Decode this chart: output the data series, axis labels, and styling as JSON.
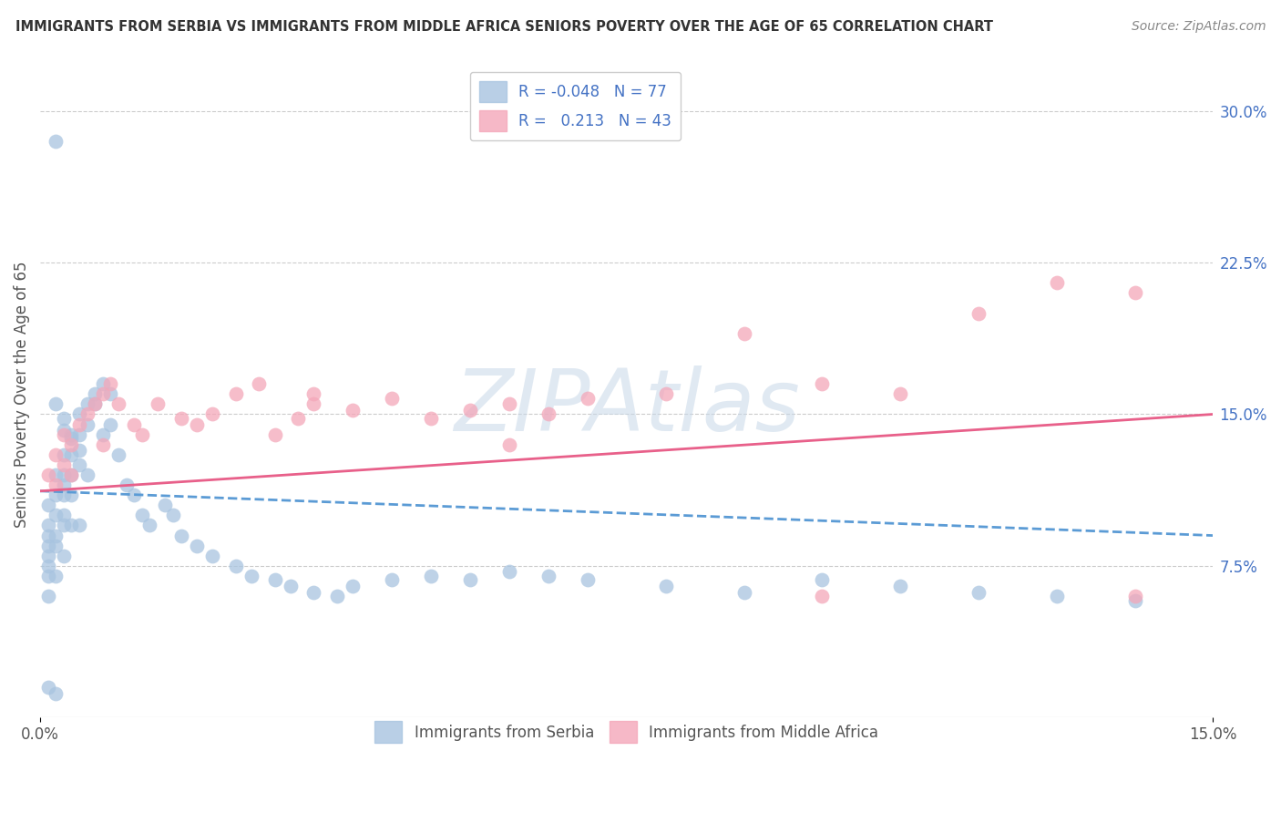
{
  "title": "IMMIGRANTS FROM SERBIA VS IMMIGRANTS FROM MIDDLE AFRICA SENIORS POVERTY OVER THE AGE OF 65 CORRELATION CHART",
  "source": "Source: ZipAtlas.com",
  "ylabel": "Seniors Poverty Over the Age of 65",
  "xlim": [
    0,
    0.15
  ],
  "ylim": [
    0,
    0.32
  ],
  "yticks": [
    0.075,
    0.15,
    0.225,
    0.3
  ],
  "ytick_labels": [
    "7.5%",
    "15.0%",
    "22.5%",
    "30.0%"
  ],
  "xticks": [
    0.0,
    0.15
  ],
  "xtick_labels": [
    "0.0%",
    "15.0%"
  ],
  "serbia_label": "Immigrants from Serbia",
  "africa_label": "Immigrants from Middle Africa",
  "serbia_color": "#a8c4e0",
  "africa_color": "#f4a7b9",
  "serbia_line_color": "#5b9bd5",
  "africa_line_color": "#e8608a",
  "serbia_R": "-0.048",
  "serbia_N": "77",
  "africa_R": "0.213",
  "africa_N": "43",
  "watermark": "ZIPAtlas",
  "background_color": "#ffffff",
  "serbia_x": [
    0.001,
    0.001,
    0.001,
    0.001,
    0.001,
    0.001,
    0.001,
    0.001,
    0.002,
    0.002,
    0.002,
    0.002,
    0.002,
    0.002,
    0.002,
    0.003,
    0.003,
    0.003,
    0.003,
    0.003,
    0.003,
    0.003,
    0.004,
    0.004,
    0.004,
    0.004,
    0.004,
    0.005,
    0.005,
    0.005,
    0.005,
    0.006,
    0.006,
    0.006,
    0.007,
    0.007,
    0.008,
    0.008,
    0.009,
    0.009,
    0.01,
    0.011,
    0.012,
    0.013,
    0.014,
    0.016,
    0.017,
    0.018,
    0.02,
    0.022,
    0.025,
    0.027,
    0.03,
    0.032,
    0.035,
    0.038,
    0.04,
    0.045,
    0.05,
    0.055,
    0.06,
    0.065,
    0.07,
    0.08,
    0.09,
    0.1,
    0.11,
    0.12,
    0.13,
    0.14,
    0.002,
    0.003,
    0.003,
    0.004,
    0.005,
    0.001,
    0.002
  ],
  "serbia_y": [
    0.105,
    0.095,
    0.09,
    0.085,
    0.08,
    0.075,
    0.07,
    0.06,
    0.285,
    0.12,
    0.11,
    0.1,
    0.09,
    0.085,
    0.07,
    0.13,
    0.12,
    0.115,
    0.11,
    0.1,
    0.095,
    0.08,
    0.14,
    0.13,
    0.12,
    0.11,
    0.095,
    0.15,
    0.14,
    0.125,
    0.095,
    0.155,
    0.145,
    0.12,
    0.16,
    0.155,
    0.165,
    0.14,
    0.16,
    0.145,
    0.13,
    0.115,
    0.11,
    0.1,
    0.095,
    0.105,
    0.1,
    0.09,
    0.085,
    0.08,
    0.075,
    0.07,
    0.068,
    0.065,
    0.062,
    0.06,
    0.065,
    0.068,
    0.07,
    0.068,
    0.072,
    0.07,
    0.068,
    0.065,
    0.062,
    0.068,
    0.065,
    0.062,
    0.06,
    0.058,
    0.155,
    0.148,
    0.142,
    0.138,
    0.132,
    0.015,
    0.012
  ],
  "africa_x": [
    0.001,
    0.002,
    0.002,
    0.003,
    0.003,
    0.004,
    0.004,
    0.005,
    0.006,
    0.007,
    0.008,
    0.009,
    0.01,
    0.012,
    0.013,
    0.015,
    0.018,
    0.02,
    0.022,
    0.025,
    0.028,
    0.03,
    0.033,
    0.035,
    0.04,
    0.045,
    0.05,
    0.055,
    0.06,
    0.065,
    0.07,
    0.08,
    0.09,
    0.1,
    0.11,
    0.12,
    0.13,
    0.14,
    0.008,
    0.035,
    0.06,
    0.1,
    0.14
  ],
  "africa_y": [
    0.12,
    0.13,
    0.115,
    0.14,
    0.125,
    0.135,
    0.12,
    0.145,
    0.15,
    0.155,
    0.16,
    0.165,
    0.155,
    0.145,
    0.14,
    0.155,
    0.148,
    0.145,
    0.15,
    0.16,
    0.165,
    0.14,
    0.148,
    0.155,
    0.152,
    0.158,
    0.148,
    0.152,
    0.155,
    0.15,
    0.158,
    0.16,
    0.19,
    0.165,
    0.16,
    0.2,
    0.215,
    0.21,
    0.135,
    0.16,
    0.135,
    0.06,
    0.06
  ]
}
